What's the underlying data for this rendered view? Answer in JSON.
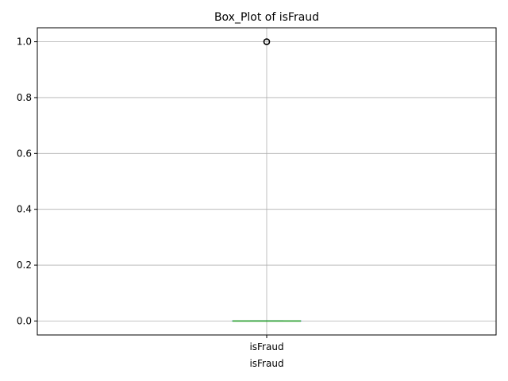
{
  "chart_data": {
    "type": "box",
    "title": "Box_Plot of isFraud",
    "xlabel": "isFraud",
    "ylabel": "",
    "categories": [
      "isFraud"
    ],
    "ylim": [
      -0.05,
      1.05
    ],
    "yticks": [
      0.0,
      0.2,
      0.4,
      0.6,
      0.8,
      1.0
    ],
    "ytick_labels": [
      "0.0",
      "0.2",
      "0.4",
      "0.6",
      "0.8",
      "1.0"
    ],
    "grid": true,
    "boxes": [
      {
        "name": "isFraud",
        "min": 0.0,
        "q1": 0.0,
        "median": 0.0,
        "q3": 0.0,
        "max": 0.0,
        "outliers": [
          1.0
        ]
      }
    ],
    "colors": {
      "box": "#1f77b4",
      "median": "#2ca02c",
      "whisker": "#1f77b4",
      "outlier": "#000000",
      "grid": "#b0b0b0"
    }
  }
}
